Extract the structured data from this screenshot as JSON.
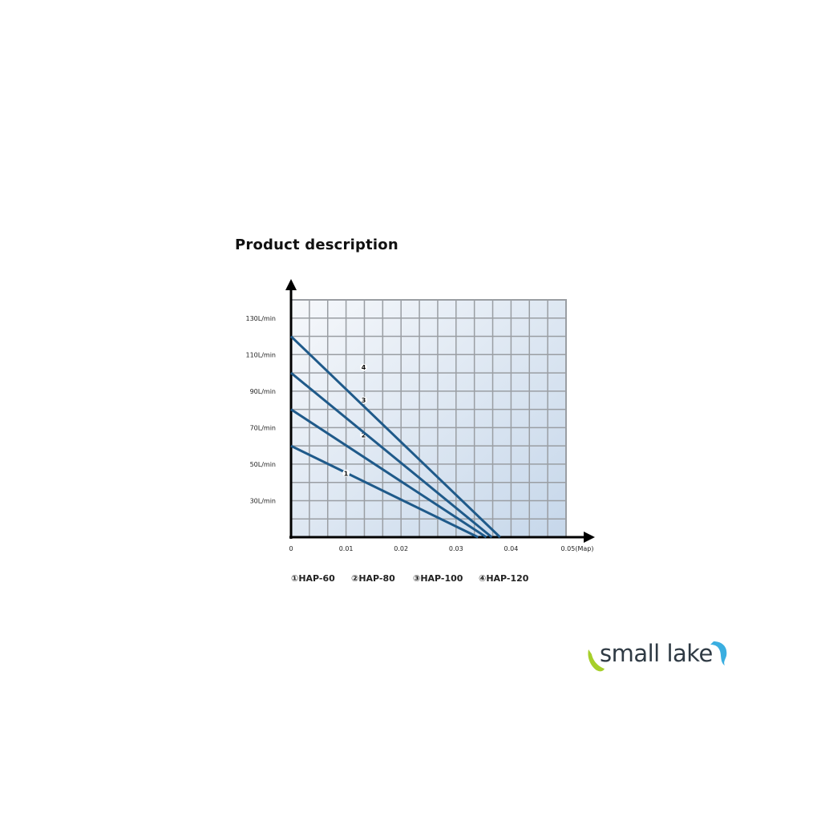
{
  "page": {
    "title": "Product description"
  },
  "chart_data": {
    "type": "line",
    "title": "",
    "xlabel": "",
    "ylabel": "",
    "x_unit": "(Map)",
    "xlim": [
      0,
      0.05
    ],
    "ylim": [
      10,
      140
    ],
    "grid": true,
    "x_ticks": [
      0,
      0.01,
      0.02,
      0.03,
      0.04,
      0.05
    ],
    "x_tick_labels": [
      "0",
      "0.01",
      "0.02",
      "0.03",
      "0.04",
      "0.05(Map)"
    ],
    "y_ticks": [
      130,
      110,
      90,
      70,
      50,
      30
    ],
    "y_tick_labels": [
      "130L/min",
      "110L/min",
      "90L/min",
      "70L/min",
      "50L/min",
      "30L/min"
    ],
    "series": [
      {
        "name": "HAP-60",
        "marker": "1",
        "x": [
          0,
          0.034
        ],
        "y": [
          60,
          10
        ]
      },
      {
        "name": "HAP-80",
        "marker": "2",
        "x": [
          0,
          0.0355
        ],
        "y": [
          80,
          10
        ]
      },
      {
        "name": "HAP-100",
        "marker": "3",
        "x": [
          0,
          0.0365
        ],
        "y": [
          100,
          10
        ]
      },
      {
        "name": "HAP-120",
        "marker": "4",
        "x": [
          0,
          0.038
        ],
        "y": [
          120,
          10
        ]
      }
    ],
    "legend": [
      "①HAP-60",
      "②HAP-80",
      "③HAP-100",
      "④HAP-120"
    ],
    "legend_placement": "bottom",
    "colors": {
      "line": "#1f5a8a",
      "grid": "#9a9ea3",
      "background_top": "#f4f7fb",
      "background_bottom": "#c9d9ea"
    }
  },
  "logo": {
    "text": "small lake",
    "colors": {
      "fish_left": "#a6cf2a",
      "fish_right": "#3aaee0"
    }
  }
}
